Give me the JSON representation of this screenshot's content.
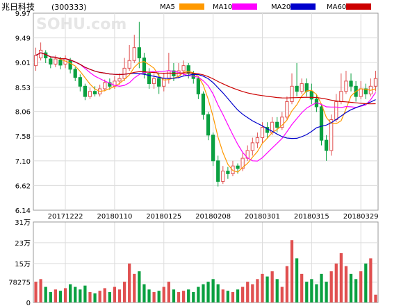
{
  "chart_data": {
    "type": "candlestick",
    "title": "兆日科技",
    "code": "(300333)",
    "watermark": "SOHU.com",
    "legend": [
      {
        "name": "MA5",
        "color": "#ff9900"
      },
      {
        "name": "MA10",
        "color": "#ff00ff"
      },
      {
        "name": "MA20",
        "color": "#0000cc"
      },
      {
        "name": "MA60",
        "color": "#cc0000"
      }
    ],
    "up_color": "#e05050",
    "down_color": "#0aa040",
    "price_axis": {
      "ticks": [
        "9.97",
        "9.49",
        "9.01",
        "8.53",
        "8.06",
        "7.58",
        "7.10",
        "6.62",
        "6.14"
      ],
      "range": [
        6.14,
        9.97
      ]
    },
    "date_axis": [
      "20171222",
      "20180110",
      "20180125",
      "20180208",
      "20180301",
      "20180315",
      "20180329"
    ],
    "date_axis_index": [
      6,
      16,
      26,
      36,
      46,
      56,
      66
    ],
    "volume_axis": {
      "ticks": [
        "31万",
        "23万",
        "15万",
        "78275",
        "0"
      ],
      "tick_values": [
        310000,
        230000,
        150000,
        78275,
        0
      ],
      "range": [
        0,
        310000
      ]
    },
    "candles": [
      [
        8.95,
        9.15,
        8.85,
        9.3
      ],
      [
        9.1,
        9.25,
        9.05,
        9.4
      ],
      [
        9.2,
        9.1,
        9.0,
        9.25
      ],
      [
        9.08,
        8.98,
        8.9,
        9.12
      ],
      [
        8.98,
        9.08,
        8.92,
        9.15
      ],
      [
        9.06,
        8.96,
        8.88,
        9.12
      ],
      [
        8.98,
        9.08,
        8.9,
        9.15
      ],
      [
        9.05,
        8.88,
        8.8,
        9.1
      ],
      [
        8.88,
        8.72,
        8.65,
        8.92
      ],
      [
        8.72,
        8.55,
        8.45,
        8.78
      ],
      [
        8.55,
        8.35,
        8.28,
        8.6
      ],
      [
        8.35,
        8.45,
        8.3,
        8.52
      ],
      [
        8.45,
        8.4,
        8.35,
        8.55
      ],
      [
        8.4,
        8.5,
        8.35,
        8.58
      ],
      [
        8.5,
        8.62,
        8.45,
        8.68
      ],
      [
        8.62,
        8.55,
        8.48,
        8.7
      ],
      [
        8.55,
        8.65,
        8.5,
        8.75
      ],
      [
        8.65,
        8.7,
        8.58,
        8.8
      ],
      [
        8.7,
        8.9,
        8.65,
        9.1
      ],
      [
        8.9,
        9.05,
        8.85,
        9.35
      ],
      [
        9.05,
        9.3,
        9.0,
        9.55
      ],
      [
        9.3,
        9.1,
        8.9,
        9.8
      ],
      [
        9.1,
        8.8,
        8.7,
        9.2
      ],
      [
        8.8,
        8.6,
        8.5,
        8.9
      ],
      [
        8.6,
        8.7,
        8.5,
        8.8
      ],
      [
        8.7,
        8.55,
        8.4,
        8.8
      ],
      [
        8.55,
        8.7,
        8.45,
        8.8
      ],
      [
        8.7,
        8.85,
        8.6,
        9.2
      ],
      [
        8.85,
        8.75,
        8.65,
        9.0
      ],
      [
        8.75,
        8.85,
        8.7,
        9.0
      ],
      [
        8.85,
        8.95,
        8.75,
        9.05
      ],
      [
        8.95,
        8.8,
        8.7,
        9.0
      ],
      [
        8.8,
        8.7,
        8.6,
        8.85
      ],
      [
        8.7,
        8.4,
        8.3,
        8.75
      ],
      [
        8.4,
        8.0,
        7.9,
        8.45
      ],
      [
        8.0,
        7.6,
        7.5,
        8.05
      ],
      [
        7.6,
        7.1,
        7.0,
        7.65
      ],
      [
        7.1,
        6.7,
        6.6,
        7.2
      ],
      [
        6.7,
        6.9,
        6.65,
        7.0
      ],
      [
        6.9,
        6.85,
        6.75,
        6.98
      ],
      [
        6.85,
        7.0,
        6.8,
        7.1
      ],
      [
        7.0,
        6.95,
        6.85,
        7.05
      ],
      [
        6.95,
        7.15,
        6.9,
        7.25
      ],
      [
        7.15,
        7.3,
        7.1,
        7.4
      ],
      [
        7.3,
        7.45,
        7.2,
        7.55
      ],
      [
        7.45,
        7.55,
        7.35,
        7.65
      ],
      [
        7.55,
        7.75,
        7.45,
        7.85
      ],
      [
        7.75,
        7.65,
        7.55,
        7.85
      ],
      [
        7.65,
        7.85,
        7.6,
        7.95
      ],
      [
        7.85,
        7.75,
        7.65,
        7.95
      ],
      [
        7.75,
        7.95,
        7.7,
        8.05
      ],
      [
        7.95,
        8.25,
        7.9,
        8.35
      ],
      [
        8.25,
        8.55,
        8.2,
        8.8
      ],
      [
        8.55,
        8.45,
        8.35,
        9.0
      ],
      [
        8.45,
        8.6,
        8.4,
        8.7
      ],
      [
        8.6,
        8.45,
        8.35,
        8.7
      ],
      [
        8.45,
        8.3,
        8.2,
        8.6
      ],
      [
        8.3,
        8.15,
        8.05,
        8.4
      ],
      [
        8.15,
        7.5,
        7.4,
        8.2
      ],
      [
        7.5,
        7.3,
        7.1,
        7.6
      ],
      [
        7.3,
        7.9,
        7.2,
        8.0
      ],
      [
        7.9,
        8.25,
        7.85,
        8.4
      ],
      [
        8.25,
        8.45,
        8.2,
        8.8
      ],
      [
        8.45,
        8.65,
        8.4,
        8.85
      ],
      [
        8.65,
        8.55,
        8.45,
        8.8
      ],
      [
        8.55,
        8.35,
        8.25,
        8.65
      ],
      [
        8.35,
        8.5,
        8.3,
        8.65
      ],
      [
        8.5,
        8.4,
        8.3,
        8.6
      ],
      [
        8.4,
        8.55,
        8.35,
        8.7
      ],
      [
        8.55,
        8.7,
        8.45,
        8.85
      ]
    ],
    "volumes": [
      80000,
      90000,
      60000,
      40000,
      50000,
      45000,
      55000,
      70000,
      60000,
      50000,
      65000,
      40000,
      35000,
      45000,
      55000,
      40000,
      60000,
      50000,
      80000,
      150000,
      110000,
      120000,
      70000,
      50000,
      40000,
      45000,
      60000,
      80000,
      50000,
      40000,
      45000,
      50000,
      40000,
      60000,
      70000,
      80000,
      90000,
      70000,
      50000,
      45000,
      40000,
      50000,
      60000,
      80000,
      70000,
      90000,
      110000,
      100000,
      120000,
      90000,
      60000,
      140000,
      240000,
      170000,
      110000,
      80000,
      90000,
      70000,
      110000,
      80000,
      120000,
      150000,
      190000,
      140000,
      110000,
      90000,
      120000,
      150000,
      170000,
      30000
    ]
  }
}
